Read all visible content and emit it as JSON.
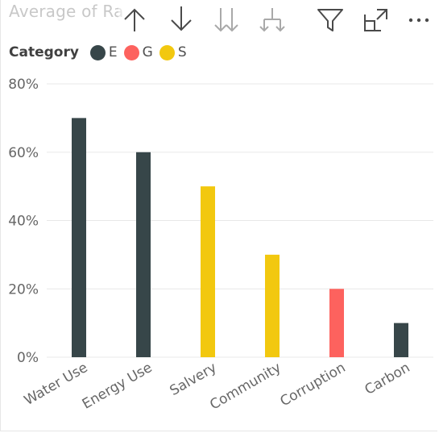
{
  "visual": {
    "title": "Average of Ra",
    "toolbar": [
      {
        "name": "sort-ascending-icon"
      },
      {
        "name": "sort-descending-icon"
      },
      {
        "name": "expand-all-down-icon"
      },
      {
        "name": "drill-down-icon"
      },
      {
        "name": "filter-icon"
      },
      {
        "name": "focus-mode-icon"
      },
      {
        "name": "more-options-icon"
      }
    ]
  },
  "legend": {
    "title": "Category",
    "items": [
      {
        "label": "E",
        "color": "#374649"
      },
      {
        "label": "G",
        "color": "#FD625E"
      },
      {
        "label": "S",
        "color": "#F2C80F"
      }
    ]
  },
  "chart_data": {
    "type": "bar",
    "categories": [
      "Water Use",
      "Energy Use",
      "Salvery",
      "Community",
      "Corruption",
      "Carbon"
    ],
    "series": [
      {
        "name": "E",
        "color": "#374649",
        "values": [
          70,
          60,
          null,
          null,
          null,
          10
        ]
      },
      {
        "name": "G",
        "color": "#FD625E",
        "values": [
          null,
          null,
          null,
          null,
          20,
          null
        ]
      },
      {
        "name": "S",
        "color": "#F2C80F",
        "values": [
          null,
          null,
          50,
          30,
          null,
          null
        ]
      }
    ],
    "yticks": [
      "0%",
      "20%",
      "40%",
      "60%",
      "80%"
    ],
    "ylim": [
      0,
      80
    ],
    "grid": true,
    "legend_position": "top-left"
  }
}
